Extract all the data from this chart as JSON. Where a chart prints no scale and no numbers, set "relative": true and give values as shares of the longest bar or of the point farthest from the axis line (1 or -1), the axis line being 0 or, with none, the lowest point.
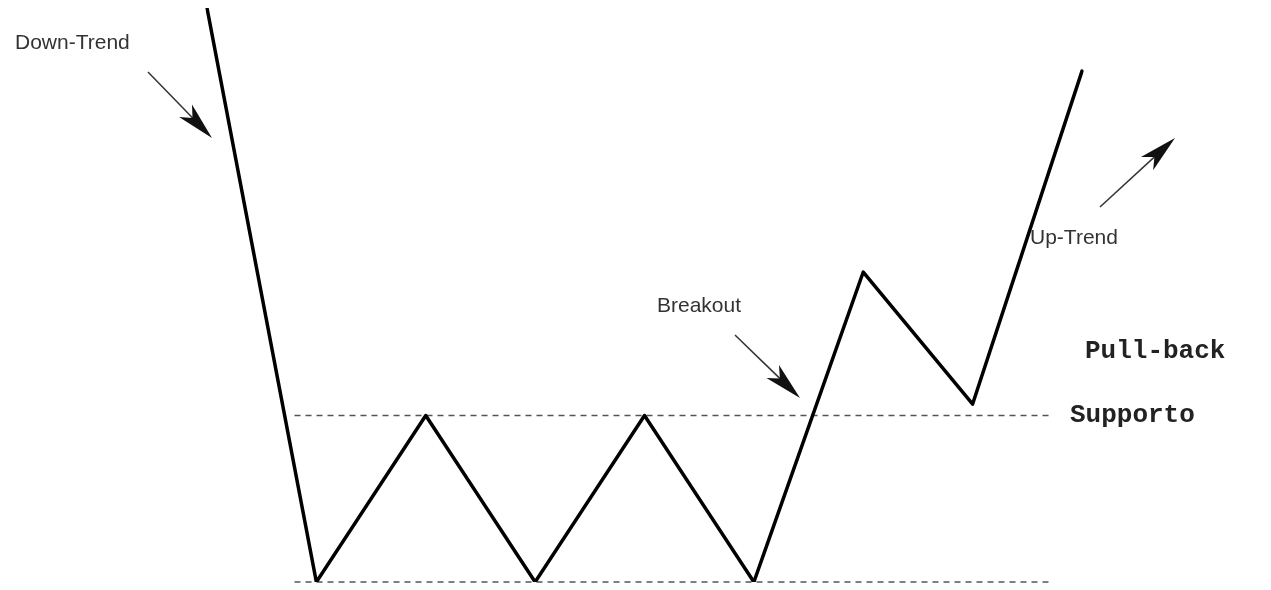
{
  "chart_data": {
    "type": "line",
    "relative": true,
    "categories": [
      null,
      null,
      null,
      null,
      null,
      null,
      null,
      null,
      null
    ],
    "series": [
      {
        "color": "#000000",
        "values": [
          1.0,
          0,
          0.29,
          0,
          0.29,
          0,
          0.54,
          0.31,
          0.89
        ]
      }
    ],
    "marker": "none",
    "line_style": "solid",
    "legend": false,
    "tick_labels": false,
    "ref_lines": [
      {
        "axis": "y",
        "value": 0.29,
        "label": "Supporto",
        "color": "#555555",
        "line_style": "dashed"
      },
      {
        "axis": "y",
        "value": 0,
        "color": "#555555",
        "line_style": "dashed"
      }
    ],
    "annotations": [
      "Down-Trend",
      "Up-Trend",
      "Breakout",
      "Pull-back"
    ]
  }
}
